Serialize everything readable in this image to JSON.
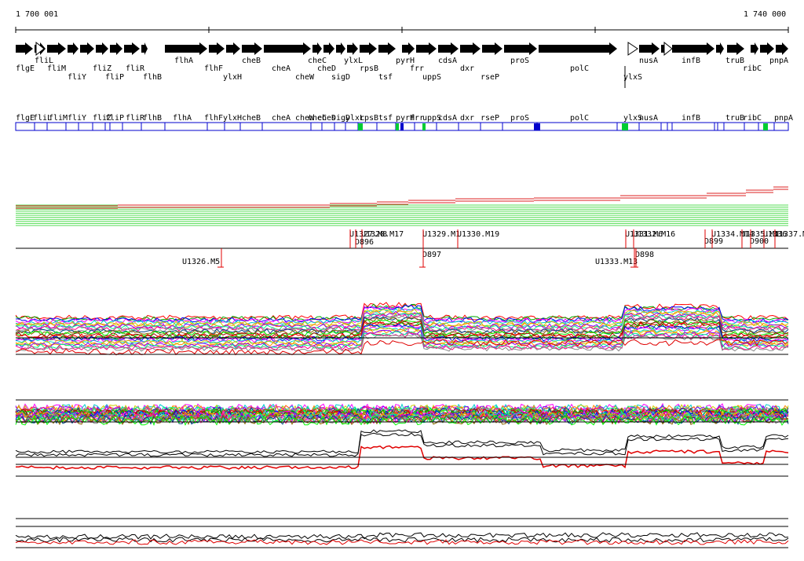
{
  "ruler": {
    "start_label": "1 700 001",
    "end_label": "1 740 000"
  },
  "colors": {
    "gene_arrow": "#000000",
    "annotation_box": "#0000cc",
    "highlight": "#00cc33",
    "trace_primary": "#e00000",
    "trace_secondary": "#000000",
    "bar_green": "#55dd55",
    "bar_red": "#dd2222"
  },
  "genes_top": [
    {
      "name": "flgE",
      "row": 2
    },
    {
      "name": "fliL",
      "row": 1
    },
    {
      "name": "fliM",
      "row": 2
    },
    {
      "name": "fliY",
      "row": 3
    },
    {
      "name": "fliZ",
      "row": 2
    },
    {
      "name": "fliP",
      "row": 3
    },
    {
      "name": "fliR",
      "row": 2
    },
    {
      "name": "flhB",
      "row": 3
    },
    {
      "name": "flhA",
      "row": 1
    },
    {
      "name": "flhF",
      "row": 2
    },
    {
      "name": "ylxH",
      "row": 3
    },
    {
      "name": "cheB",
      "row": 1
    },
    {
      "name": "cheA",
      "row": 2
    },
    {
      "name": "cheW",
      "row": 3
    },
    {
      "name": "cheC",
      "row": 1
    },
    {
      "name": "cheD",
      "row": 2
    },
    {
      "name": "sigD",
      "row": 3
    },
    {
      "name": "ylxL",
      "row": 1
    },
    {
      "name": "rpsB",
      "row": 2
    },
    {
      "name": "tsf",
      "row": 3
    },
    {
      "name": "pyrH",
      "row": 1
    },
    {
      "name": "frr",
      "row": 2
    },
    {
      "name": "uppS",
      "row": 3
    },
    {
      "name": "cdsA",
      "row": 1
    },
    {
      "name": "dxr",
      "row": 2
    },
    {
      "name": "rseP",
      "row": 3
    },
    {
      "name": "proS",
      "row": 1
    },
    {
      "name": "polC",
      "row": 2
    },
    {
      "name": "ylxS",
      "row": 3
    },
    {
      "name": "nusA",
      "row": 1
    },
    {
      "name": "infB",
      "row": 1
    },
    {
      "name": "truB",
      "row": 1
    },
    {
      "name": "ribC",
      "row": 2
    },
    {
      "name": "pnpA",
      "row": 1
    }
  ],
  "genes_boxes": [
    "flgE",
    "fliL",
    "fliM",
    "fliY",
    "fliZ",
    "fliP",
    "fliR",
    "flhB",
    "flhA",
    "flhF",
    "ylxH",
    "cheB",
    "cheA",
    "cheW",
    "cheC",
    "cheD",
    "sigD",
    "ylxL",
    "rpsB",
    "tsf",
    "pyrH",
    "frr",
    "uppS",
    "cdsA",
    "dxr",
    "rseP",
    "proS",
    "polC",
    "ylxS",
    "nusA",
    "infB",
    "truB",
    "ribC",
    "pnpA"
  ],
  "markers_above": [
    "U1327.M8",
    "U1328.M17",
    "D896",
    "U1329.M1",
    "U1330.M19",
    "U1331.M6",
    "U1332.M16",
    "D899",
    "U1334.M14",
    "U1335.M1",
    "D900",
    "U1336",
    "U1337.M1"
  ],
  "markers_below": [
    "U1326.M5",
    "D897",
    "U1333.M13",
    "D898"
  ]
}
